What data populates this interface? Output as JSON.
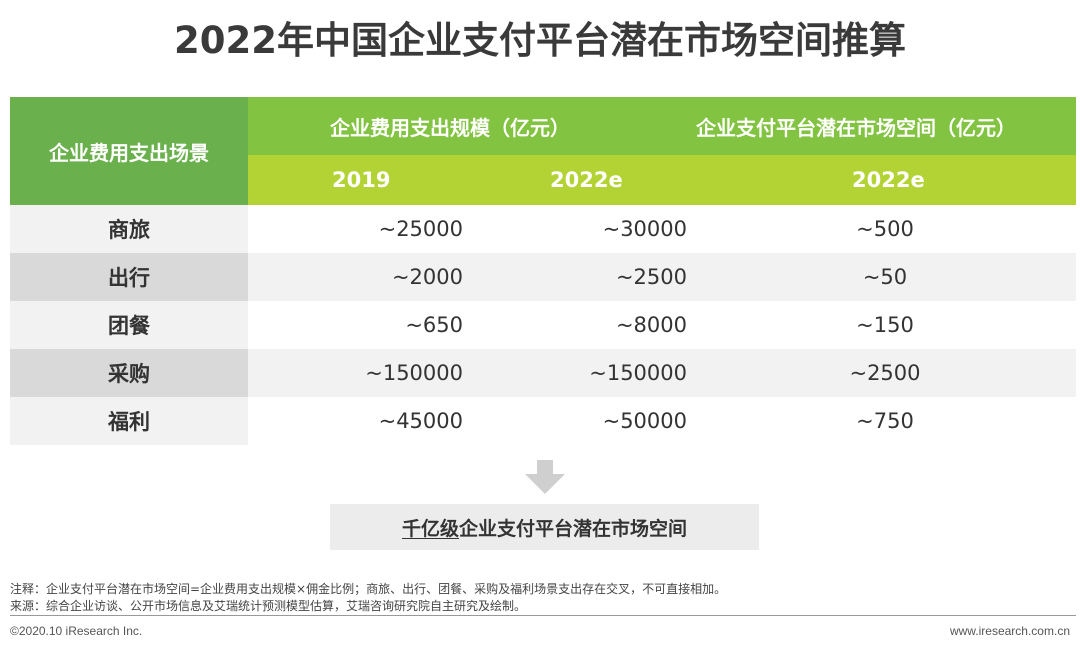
{
  "title": "2022年中国企业支付平台潜在市场空间推算",
  "table": {
    "row_header": "企业费用支出场景",
    "group1_header": "企业费用支出规模（亿元）",
    "group2_header": "企业支付平台潜在市场空间（亿元）",
    "sub_headers": [
      "2019",
      "2022e",
      "2022e"
    ],
    "rows": [
      {
        "label": "商旅",
        "v2019": "~25000",
        "v2022": "~30000",
        "market": "~500"
      },
      {
        "label": "出行",
        "v2019": "~2000",
        "v2022": "~2500",
        "market": "~50"
      },
      {
        "label": "团餐",
        "v2019": "~650",
        "v2022": "~8000",
        "market": "~150"
      },
      {
        "label": "采购",
        "v2019": "~150000",
        "v2022": "~150000",
        "market": "~2500"
      },
      {
        "label": "福利",
        "v2019": "~45000",
        "v2022": "~50000",
        "market": "~750"
      }
    ]
  },
  "conclusion": {
    "underlined": "千亿级",
    "rest": "企业支付平台潜在市场空间"
  },
  "note": "注释：企业支付平台潜在市场空间=企业费用支出规模×佣金比例；商旅、出行、团餐、采购及福利场景支出存在交叉，不可直接相加。",
  "source": "来源：综合企业访谈、公开市场信息及艾瑞统计预测模型估算，艾瑞咨询研究院自主研究及绘制。",
  "footer": {
    "copyright": "©2020.10 iResearch Inc.",
    "website": "www.iresearch.com.cn"
  },
  "colors": {
    "header_dark": "#6ab04c",
    "header_mid": "#82c341",
    "header_light": "#b3d335",
    "row_alt": "#d9d9d9",
    "row_base": "#f2f2f2"
  }
}
